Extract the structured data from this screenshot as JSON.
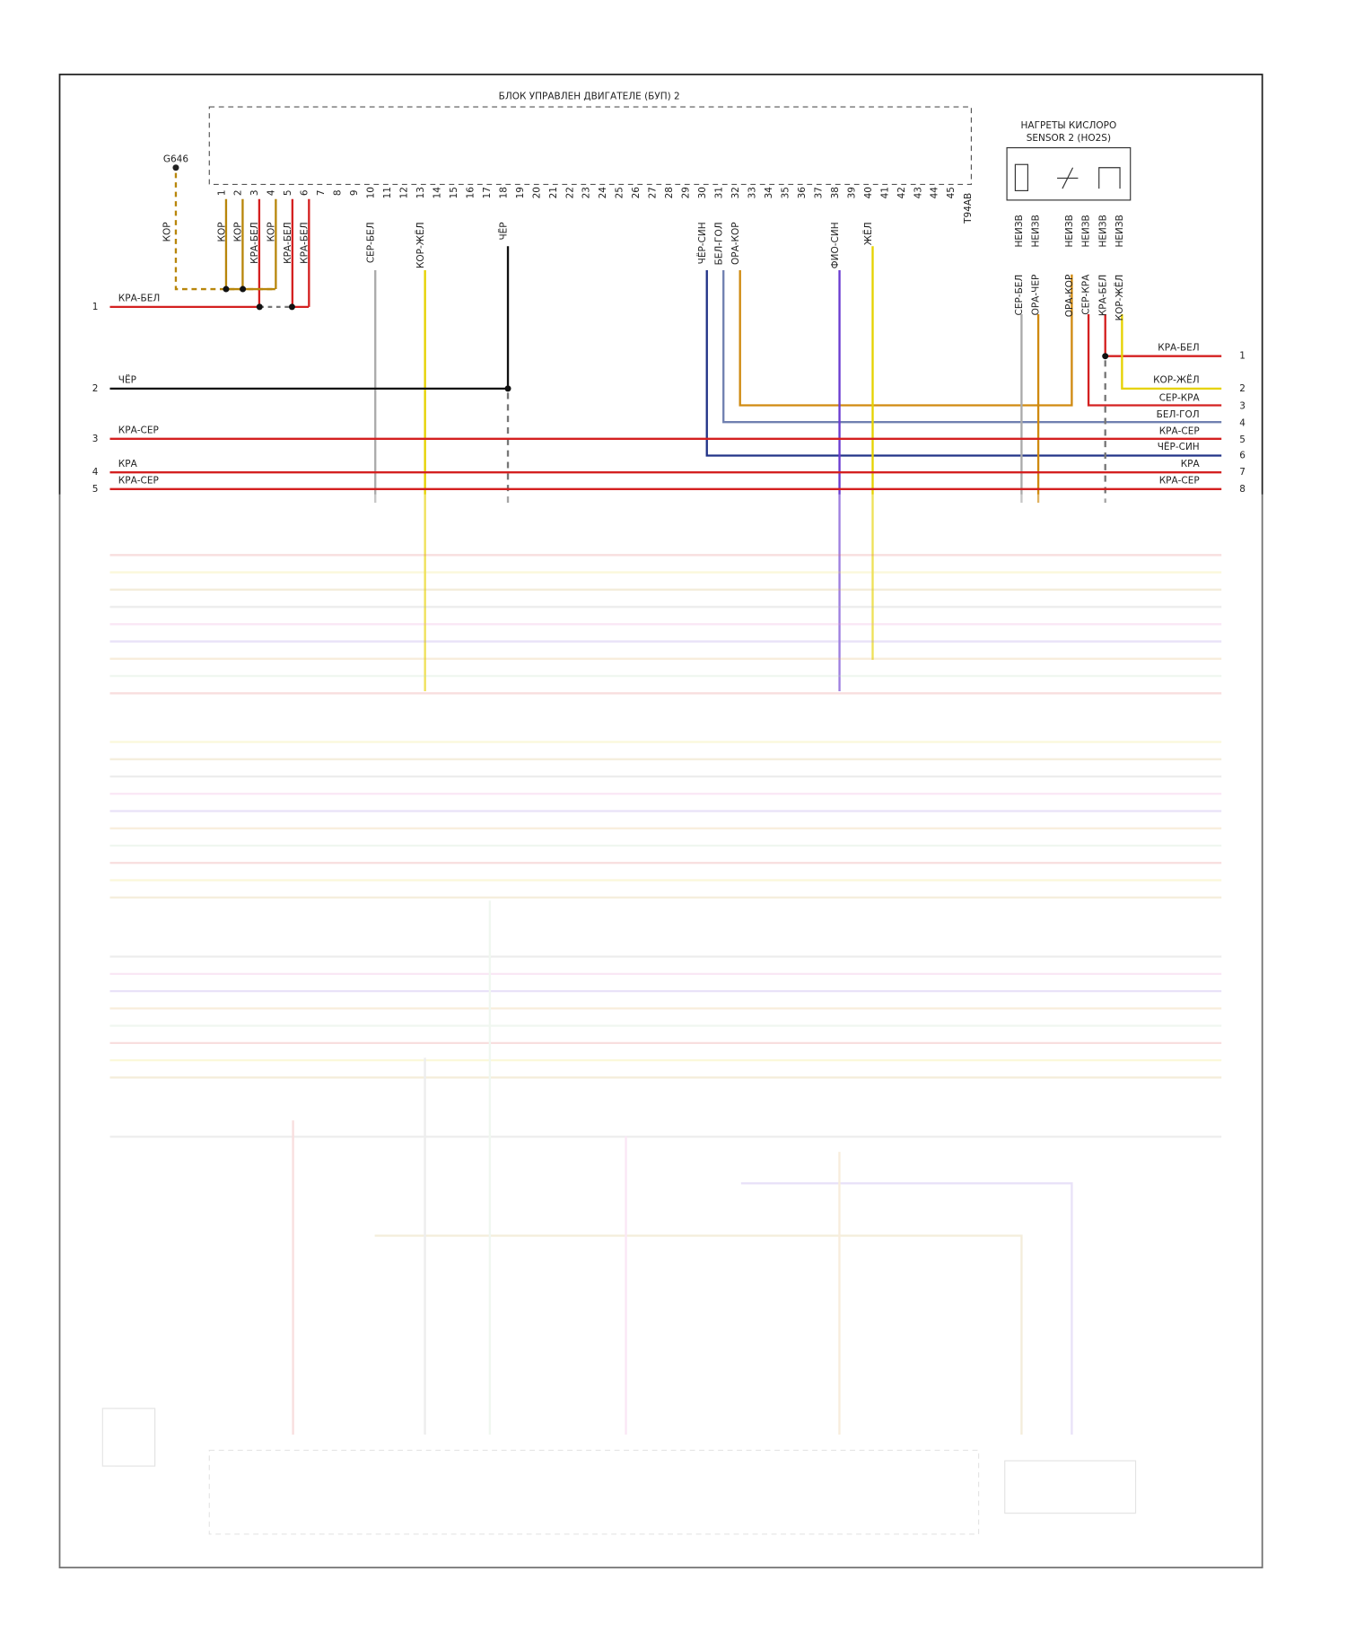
{
  "ecu": {
    "title": "БЛОК УПРАВЛЕН ДВИГАТЕЛЕ (БУП) 2",
    "ground": {
      "label": "G646",
      "wire": "КОР"
    },
    "pins": [
      "1",
      "2",
      "3",
      "4",
      "5",
      "6",
      "7",
      "8",
      "9",
      "10",
      "11",
      "12",
      "13",
      "14",
      "15",
      "16",
      "17",
      "18",
      "19",
      "20",
      "21",
      "22",
      "23",
      "24",
      "25",
      "26",
      "27",
      "28",
      "29",
      "30",
      "31",
      "32",
      "33",
      "34",
      "35",
      "36",
      "37",
      "38",
      "39",
      "40",
      "41",
      "42",
      "43",
      "44",
      "45",
      "T94AB"
    ],
    "pin_wires": [
      "КОР",
      "КОР",
      "КРА-БЕЛ",
      "КОР",
      "КРА-БЕЛ",
      "КРА-БЕЛ",
      null,
      null,
      null,
      "СЕР-БЕЛ",
      null,
      null,
      "КОР-ЖЁЛ",
      null,
      null,
      null,
      null,
      "ЧЁР",
      null,
      null,
      null,
      null,
      null,
      null,
      null,
      null,
      null,
      null,
      null,
      "ЧЁР-СИН",
      "БЕЛ-ГОЛ",
      "ОРА-КОР",
      null,
      null,
      null,
      null,
      null,
      "ФИО-СИН",
      null,
      "ЖЁЛ",
      null,
      null,
      null,
      null,
      null,
      null
    ]
  },
  "sensor": {
    "title": [
      "НАГРЕТЫ КИСЛОРО",
      "SENSOR 2  (HO2S)"
    ],
    "pins": [
      "НЕИЗВ",
      "НЕИЗВ",
      "НЕИЗВ",
      "НЕИЗВ",
      "НЕИЗВ",
      "НЕИЗВ"
    ],
    "wires": [
      "СЕР-БЕЛ",
      "ОРА-ЧЕР",
      "ОРА-КОР",
      "СЕР-КРА",
      "КРА-БЕЛ",
      "КОР-ЖЁЛ"
    ]
  },
  "left_connector": [
    {
      "pin": "1",
      "wire": "КРА-БЕЛ"
    },
    {
      "pin": "2",
      "wire": "ЧЁР"
    },
    {
      "pin": "3",
      "wire": "КРА-СЕР"
    },
    {
      "pin": "4",
      "wire": "КРА"
    },
    {
      "pin": "5",
      "wire": "КРА-СЕР"
    }
  ],
  "right_connector": [
    {
      "pin": "1",
      "wire": "КРА-БЕЛ"
    },
    {
      "pin": "2",
      "wire": "КОР-ЖЁЛ"
    },
    {
      "pin": "3",
      "wire": "СЕР-КРА"
    },
    {
      "pin": "4",
      "wire": "БЕЛ-ГОЛ"
    },
    {
      "pin": "5",
      "wire": "КРА-СЕР"
    },
    {
      "pin": "6",
      "wire": "ЧЁР-СИН"
    },
    {
      "pin": "7",
      "wire": "КРА"
    },
    {
      "pin": "8",
      "wire": "КРА-СЕР"
    }
  ]
}
